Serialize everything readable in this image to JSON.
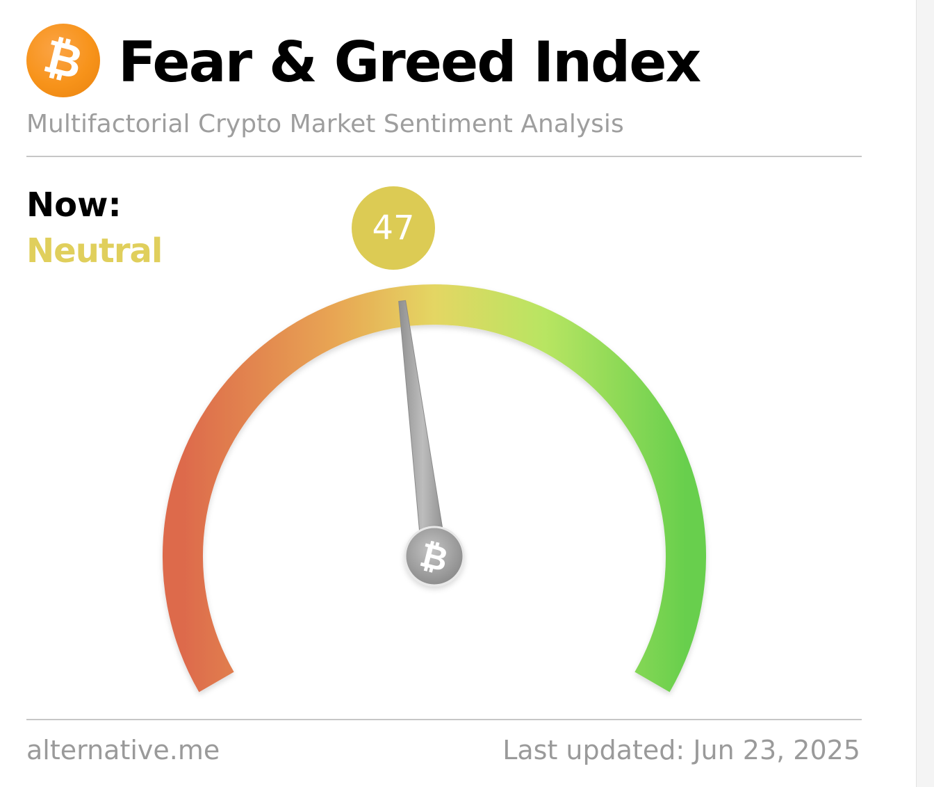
{
  "header": {
    "logo_icon": "bitcoin-icon",
    "logo_symbol": "₿",
    "title": "Fear & Greed Index",
    "subtitle": "Multifactorial Crypto Market Sentiment Analysis"
  },
  "current": {
    "label": "Now:",
    "classification": "Neutral",
    "value": "47",
    "value_number": 47,
    "scale_min": 0,
    "scale_max": 100
  },
  "gauge": {
    "hub_icon": "bitcoin-icon",
    "hub_symbol": "₿",
    "colors": {
      "fear": "#dd6a4c",
      "orange": "#e8a553",
      "neutral": "#e4d663",
      "yellow_green": "#b8e562",
      "greed": "#68cf4d",
      "needle": "#a8a8a8",
      "badge": "#dccb54",
      "classification_text": "#e0cf5c"
    }
  },
  "footer": {
    "source": "alternative.me",
    "last_updated": "Last updated: Jun 23, 2025"
  }
}
